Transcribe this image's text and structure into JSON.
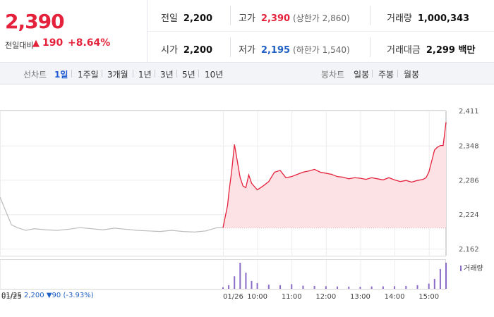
{
  "quote": {
    "price": "2,390",
    "change_label": "전일대비",
    "change_arrow": "▲",
    "change": "190",
    "change_rate": "+8.64%",
    "prev_close_label": "전일",
    "prev_close": "2,200",
    "open_label": "시가",
    "open": "2,200",
    "high_label": "고가",
    "high": "2,390",
    "upper_limit": "(상한가 2,860)",
    "low_label": "저가",
    "low": "2,195",
    "lower_limit": "(하한가 1,540)",
    "volume_label": "거래량",
    "volume": "1,000,343",
    "value_label": "거래대금",
    "value": "2,299 백만"
  },
  "tabs": {
    "line_label": "선차트",
    "line_periods": [
      "1일",
      "1주일",
      "3개월",
      "1년",
      "3년",
      "5년",
      "10년"
    ],
    "active": "1일",
    "candle_label": "봉차트",
    "candle_periods": [
      "일봉",
      "주봉",
      "월봉"
    ]
  },
  "footer": {
    "prev_date": "01/25",
    "prev_price": "2,200",
    "prev_change": "▼90",
    "prev_rate": "(-3.93%)"
  },
  "volume_legend": "거래량",
  "colors": {
    "up": "#e5223c",
    "down": "#2160c4",
    "prev": "#bbbbbb",
    "volume": "#8a6bc8",
    "fill": "#fde2e5"
  },
  "chart_data": {
    "type": "line",
    "y_ticks": [
      2411,
      2348,
      2286,
      2224,
      2162
    ],
    "y_tick_labels": [
      "2,411",
      "2,348",
      "2,286",
      "2,224",
      "2,162"
    ],
    "ylim": [
      2162,
      2411
    ],
    "x_tick_labels": [
      "01/25",
      "01/26",
      "10:00",
      "11:00",
      "12:00",
      "13:00",
      "14:00",
      "15:00"
    ],
    "base_price": 2200,
    "series": [
      {
        "name": "01/25",
        "x": [
          "09:00",
          "09:10",
          "09:20",
          "09:30",
          "09:45",
          "10:00",
          "10:20",
          "10:40",
          "11:00",
          "11:20",
          "11:40",
          "12:00",
          "12:20",
          "12:40",
          "13:00",
          "13:20",
          "13:40",
          "14:00",
          "14:20",
          "14:40",
          "15:00",
          "15:20",
          "15:30"
        ],
        "y": [
          2255,
          2230,
          2205,
          2200,
          2195,
          2198,
          2196,
          2195,
          2197,
          2200,
          2198,
          2196,
          2199,
          2197,
          2195,
          2194,
          2193,
          2195,
          2193,
          2192,
          2194,
          2200,
          2200
        ]
      },
      {
        "name": "01/26",
        "x": [
          "09:00",
          "09:02",
          "09:05",
          "09:08",
          "09:10",
          "09:13",
          "09:15",
          "09:20",
          "09:25",
          "09:30",
          "09:35",
          "09:40",
          "09:45",
          "09:50",
          "10:00",
          "10:10",
          "10:20",
          "10:30",
          "10:40",
          "10:50",
          "11:00",
          "11:10",
          "11:20",
          "11:30",
          "11:40",
          "11:50",
          "12:00",
          "12:10",
          "12:20",
          "12:30",
          "12:40",
          "12:50",
          "13:00",
          "13:10",
          "13:20",
          "13:30",
          "13:40",
          "13:50",
          "14:00",
          "14:10",
          "14:20",
          "14:30",
          "14:40",
          "14:50",
          "14:55",
          "15:00",
          "15:05",
          "15:10",
          "15:15",
          "15:20",
          "15:25",
          "15:30"
        ],
        "y": [
          2200,
          2210,
          2225,
          2240,
          2260,
          2285,
          2300,
          2350,
          2320,
          2290,
          2275,
          2272,
          2295,
          2280,
          2268,
          2275,
          2283,
          2300,
          2303,
          2290,
          2292,
          2296,
          2300,
          2302,
          2305,
          2300,
          2298,
          2296,
          2292,
          2291,
          2288,
          2290,
          2289,
          2287,
          2290,
          2288,
          2286,
          2290,
          2286,
          2283,
          2285,
          2282,
          2285,
          2287,
          2290,
          2300,
          2320,
          2340,
          2345,
          2348,
          2348,
          2390
        ]
      }
    ],
    "volume": {
      "name": "거래량",
      "x": [
        "09:00",
        "09:10",
        "09:20",
        "09:30",
        "09:40",
        "09:50",
        "10:00",
        "10:20",
        "10:40",
        "11:00",
        "11:20",
        "11:40",
        "12:00",
        "12:20",
        "12:40",
        "13:00",
        "13:20",
        "13:40",
        "14:00",
        "14:20",
        "14:40",
        "15:00",
        "15:10",
        "15:20",
        "15:30"
      ],
      "y": [
        60,
        140,
        480,
        1000,
        620,
        300,
        220,
        160,
        140,
        180,
        120,
        110,
        100,
        90,
        85,
        80,
        90,
        95,
        100,
        110,
        140,
        200,
        380,
        760,
        1000
      ]
    }
  }
}
